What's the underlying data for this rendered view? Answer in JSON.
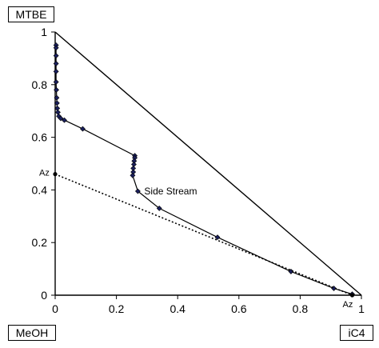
{
  "corner_labels": {
    "top": "MTBE",
    "bottom_left": "MeOH",
    "bottom_right": "iC4"
  },
  "chart_data": {
    "type": "line",
    "title": "",
    "xlabel": "",
    "ylabel": "",
    "xlim": [
      0,
      1
    ],
    "ylim": [
      0,
      1
    ],
    "x_ticks": [
      "0",
      "0.2",
      "0.4",
      "0.6",
      "0.8",
      "1"
    ],
    "y_ticks": [
      "0",
      "0.2",
      "0.4",
      "0.6",
      "0.8",
      "1"
    ],
    "grid": false,
    "triangle_vertices": [
      [
        0,
        1
      ],
      [
        1,
        0
      ],
      [
        0,
        0
      ]
    ],
    "series": [
      {
        "type": "line-markers",
        "points": [
          [
            0.003,
            0.95
          ],
          [
            0.003,
            0.94
          ],
          [
            0.003,
            0.91
          ],
          [
            0.003,
            0.88
          ],
          [
            0.003,
            0.85
          ],
          [
            0.003,
            0.81
          ],
          [
            0.004,
            0.78
          ],
          [
            0.005,
            0.75
          ],
          [
            0.006,
            0.73
          ],
          [
            0.007,
            0.71
          ],
          [
            0.009,
            0.695
          ],
          [
            0.012,
            0.68
          ],
          [
            0.018,
            0.672
          ],
          [
            0.03,
            0.665
          ],
          [
            0.09,
            0.632
          ],
          [
            0.26,
            0.53
          ],
          [
            0.26,
            0.522
          ],
          [
            0.258,
            0.51
          ],
          [
            0.257,
            0.497
          ],
          [
            0.255,
            0.482
          ],
          [
            0.255,
            0.468
          ],
          [
            0.253,
            0.455
          ],
          [
            0.27,
            0.395
          ],
          [
            0.34,
            0.33
          ],
          [
            0.53,
            0.22
          ],
          [
            0.77,
            0.09
          ],
          [
            0.91,
            0.026
          ],
          [
            0.97,
            0.004
          ]
        ]
      },
      {
        "type": "dotted",
        "points": [
          [
            0,
            0.46
          ],
          [
            0.97,
            0.0
          ]
        ]
      }
    ],
    "azeotrope_points": [
      [
        0,
        0.46
      ],
      [
        0.97,
        0.0
      ]
    ],
    "annotations": [
      {
        "text": "Az",
        "at": [
          0,
          0.46
        ]
      },
      {
        "text": "Az",
        "at": [
          0.97,
          0.0
        ]
      },
      {
        "text": "Side Stream",
        "at": [
          0.27,
          0.395
        ]
      }
    ]
  }
}
